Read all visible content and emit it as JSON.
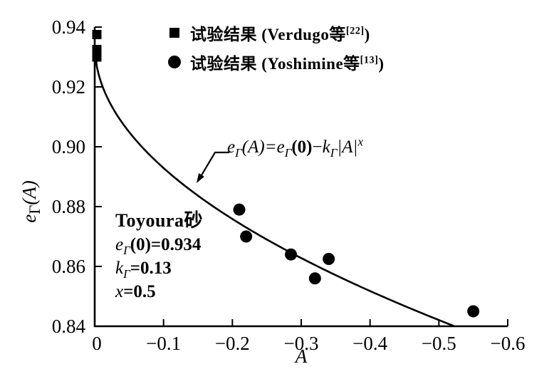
{
  "figure": {
    "background": "#ffffff",
    "ink": "#000000"
  },
  "chart_data": {
    "type": "scatter",
    "title": "",
    "xlabel": "A",
    "ylabel": "eΓ(A)",
    "xlim": [
      0,
      -0.6
    ],
    "ylim": [
      0.84,
      0.94
    ],
    "x_ticks": [
      0,
      -0.1,
      -0.2,
      -0.3,
      -0.4,
      -0.5,
      -0.6
    ],
    "x_tick_labels": [
      "0",
      "−0.1",
      "−0.2",
      "−0.3",
      "−0.4",
      "−0.5",
      "−0.6"
    ],
    "y_ticks": [
      0.84,
      0.86,
      0.88,
      0.9,
      0.92,
      0.94
    ],
    "y_tick_labels": [
      "0.84",
      "0.86",
      "0.88",
      "0.90",
      "0.92",
      "0.94"
    ],
    "grid": false,
    "legend_position": "top-inside",
    "series": [
      {
        "name": "试验结果 (Verdugo等[22])",
        "marker": "square",
        "points": [
          [
            0,
            0.9375
          ],
          [
            0,
            0.9325
          ],
          [
            0,
            0.93
          ]
        ]
      },
      {
        "name": "试验结果 (Yoshimine等[13])",
        "marker": "circle",
        "points": [
          [
            -0.21,
            0.879
          ],
          [
            -0.22,
            0.87
          ],
          [
            -0.285,
            0.864
          ],
          [
            -0.32,
            0.856
          ],
          [
            -0.34,
            0.8625
          ],
          [
            -0.55,
            0.845
          ]
        ]
      }
    ],
    "curve": {
      "label": "eΓ(A)=eΓ(0)−kΓ|A|^x",
      "e_gamma_0": 0.934,
      "k_gamma": 0.13,
      "x_exp": 0.5,
      "A_start": 0,
      "A_end": -0.523
    }
  },
  "legend": {
    "rows": [
      {
        "marker": "square",
        "pre": "试验结果 (",
        "name": "Verdugo等",
        "sup": "[22]",
        "post": ")"
      },
      {
        "marker": "circle",
        "pre": "试验结果 (",
        "name": "Yoshimine等",
        "sup": "[13]",
        "post": ")"
      }
    ]
  },
  "equation": {
    "e1": "e",
    "g1": "Γ",
    "m1": "(A)=",
    "e2": "e",
    "g2": "Γ",
    "m2": "(0)",
    "m3": "−",
    "k": "k",
    "g3": "Γ",
    "m4": "|A|",
    "sup": "x"
  },
  "params": {
    "title": "Toyoura砂",
    "line1": {
      "base": "e",
      "sub": "Γ",
      "rest": "(0)=0.934"
    },
    "line2": {
      "base": "k",
      "sub": "Γ",
      "rest": "=0.13"
    },
    "line3": {
      "base": "x",
      "rest": "=0.5"
    }
  },
  "axis": {
    "xlabel": "A",
    "ylabel_base": "e",
    "ylabel_sub": "Γ",
    "ylabel_rest": "(A)"
  }
}
